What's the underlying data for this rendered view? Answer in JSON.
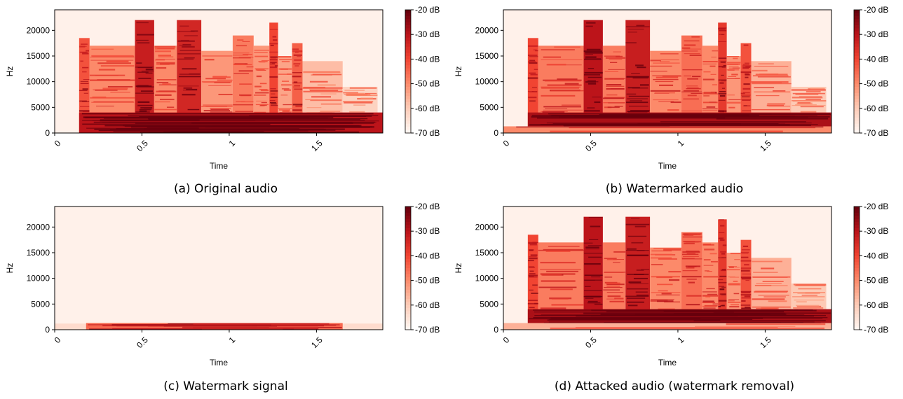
{
  "colors": {
    "spectrogram_colormap": [
      "#fff5f0",
      "#fdcab5",
      "#fc8a6a",
      "#f14432",
      "#bc141a",
      "#67000d"
    ]
  },
  "panels": [
    {
      "caption": "(a) Original audio"
    },
    {
      "caption": "(b) Watermarked audio"
    },
    {
      "caption": "(c) Watermark signal"
    },
    {
      "caption": "(d) Attacked audio (watermark removal)"
    }
  ],
  "chart_data": [
    {
      "type": "heatmap",
      "xlabel": "Time",
      "ylabel": "Hz",
      "xlim": [
        0,
        1.88
      ],
      "ylim": [
        0,
        24000
      ],
      "xticks": [
        "0",
        "0.5",
        "1",
        "1.5"
      ],
      "x_tick_values": [
        0,
        0.5,
        1,
        1.5
      ],
      "yticks": [
        "0",
        "5000",
        "10000",
        "15000",
        "20000"
      ],
      "y_tick_values": [
        0,
        5000,
        10000,
        15000,
        20000
      ],
      "colorbar": {
        "range_db": [
          -70,
          -20
        ],
        "ticks": [
          "-20 dB",
          "-30 dB",
          "-40 dB",
          "-50 dB",
          "-60 dB",
          "-70 dB"
        ]
      },
      "energy_bands": [
        {
          "t": [
            0.14,
            0.2
          ],
          "f_max": 18500,
          "db": -42
        },
        {
          "t": [
            0.2,
            0.46
          ],
          "f_max": 17000,
          "db": -50
        },
        {
          "t": [
            0.46,
            0.57
          ],
          "f_max": 22000,
          "db": -32
        },
        {
          "t": [
            0.57,
            0.7
          ],
          "f_max": 17000,
          "db": -50
        },
        {
          "t": [
            0.7,
            0.84
          ],
          "f_max": 22000,
          "db": -34
        },
        {
          "t": [
            0.84,
            1.02
          ],
          "f_max": 16000,
          "db": -52
        },
        {
          "t": [
            1.02,
            1.14
          ],
          "f_max": 19000,
          "db": -48
        },
        {
          "t": [
            1.14,
            1.23
          ],
          "f_max": 17000,
          "db": -52
        },
        {
          "t": [
            1.23,
            1.28
          ],
          "f_max": 21500,
          "db": -40
        },
        {
          "t": [
            1.28,
            1.36
          ],
          "f_max": 15000,
          "db": -54
        },
        {
          "t": [
            1.36,
            1.42
          ],
          "f_max": 17500,
          "db": -44
        },
        {
          "t": [
            1.42,
            1.65
          ],
          "f_max": 14000,
          "db": -58
        },
        {
          "t": [
            1.65,
            1.85
          ],
          "f_max": 9000,
          "db": -62
        }
      ],
      "low_band": {
        "t": [
          0.14,
          1.88
        ],
        "f_max": 4000,
        "db": -30
      }
    },
    {
      "type": "heatmap",
      "xlabel": "Time",
      "ylabel": "Hz",
      "xlim": [
        0,
        1.88
      ],
      "ylim": [
        0,
        24000
      ],
      "xticks": [
        "0",
        "0.5",
        "1",
        "1.5"
      ],
      "x_tick_values": [
        0,
        0.5,
        1,
        1.5
      ],
      "yticks": [
        "0",
        "5000",
        "10000",
        "15000",
        "20000"
      ],
      "y_tick_values": [
        0,
        5000,
        10000,
        15000,
        20000
      ],
      "colorbar": {
        "range_db": [
          -70,
          -20
        ],
        "ticks": [
          "-20 dB",
          "-30 dB",
          "-40 dB",
          "-50 dB",
          "-60 dB",
          "-70 dB"
        ]
      },
      "energy_bands": [
        {
          "t": [
            0.14,
            0.2
          ],
          "f_max": 18500,
          "db": -40
        },
        {
          "t": [
            0.2,
            0.46
          ],
          "f_max": 17000,
          "db": -48
        },
        {
          "t": [
            0.46,
            0.57
          ],
          "f_max": 22000,
          "db": -30
        },
        {
          "t": [
            0.57,
            0.7
          ],
          "f_max": 17000,
          "db": -48
        },
        {
          "t": [
            0.7,
            0.84
          ],
          "f_max": 22000,
          "db": -32
        },
        {
          "t": [
            0.84,
            1.02
          ],
          "f_max": 16000,
          "db": -50
        },
        {
          "t": [
            1.02,
            1.14
          ],
          "f_max": 19000,
          "db": -46
        },
        {
          "t": [
            1.14,
            1.23
          ],
          "f_max": 17000,
          "db": -50
        },
        {
          "t": [
            1.23,
            1.28
          ],
          "f_max": 21500,
          "db": -38
        },
        {
          "t": [
            1.28,
            1.36
          ],
          "f_max": 15000,
          "db": -52
        },
        {
          "t": [
            1.36,
            1.42
          ],
          "f_max": 17500,
          "db": -42
        },
        {
          "t": [
            1.42,
            1.65
          ],
          "f_max": 14000,
          "db": -56
        },
        {
          "t": [
            1.65,
            1.85
          ],
          "f_max": 9000,
          "db": -60
        }
      ],
      "low_band": {
        "t": [
          0.14,
          1.88
        ],
        "f_max": 4000,
        "db": -28
      },
      "watermark_band": {
        "t": [
          0,
          1.88
        ],
        "f_max": 1300,
        "db": -50
      }
    },
    {
      "type": "heatmap",
      "xlabel": "Time",
      "ylabel": "Hz",
      "xlim": [
        0,
        1.88
      ],
      "ylim": [
        0,
        24000
      ],
      "xticks": [
        "0",
        "0.5",
        "1",
        "1.5"
      ],
      "x_tick_values": [
        0,
        0.5,
        1,
        1.5
      ],
      "yticks": [
        "0",
        "5000",
        "10000",
        "15000",
        "20000"
      ],
      "y_tick_values": [
        0,
        5000,
        10000,
        15000,
        20000
      ],
      "colorbar": {
        "range_db": [
          -70,
          -20
        ],
        "ticks": [
          "-20 dB",
          "-30 dB",
          "-40 dB",
          "-50 dB",
          "-60 dB",
          "-70 dB"
        ]
      },
      "energy_bands": [],
      "watermark_band": {
        "t": [
          0.18,
          1.65
        ],
        "f_max": 1300,
        "db": -45
      },
      "watermark_floor": {
        "t": [
          0,
          1.88
        ],
        "f_max": 1200,
        "db": -64
      }
    },
    {
      "type": "heatmap",
      "xlabel": "Time",
      "ylabel": "Hz",
      "xlim": [
        0,
        1.88
      ],
      "ylim": [
        0,
        24000
      ],
      "xticks": [
        "0",
        "0.5",
        "1",
        "1.5"
      ],
      "x_tick_values": [
        0,
        0.5,
        1,
        1.5
      ],
      "yticks": [
        "0",
        "5000",
        "10000",
        "15000",
        "20000"
      ],
      "y_tick_values": [
        0,
        5000,
        10000,
        15000,
        20000
      ],
      "colorbar": {
        "range_db": [
          -70,
          -20
        ],
        "ticks": [
          "-20 dB",
          "-30 dB",
          "-40 dB",
          "-50 dB",
          "-60 dB",
          "-70 dB"
        ]
      },
      "energy_bands": [
        {
          "t": [
            0.14,
            0.2
          ],
          "f_max": 18500,
          "db": -40
        },
        {
          "t": [
            0.2,
            0.46
          ],
          "f_max": 17000,
          "db": -48
        },
        {
          "t": [
            0.46,
            0.57
          ],
          "f_max": 22000,
          "db": -30
        },
        {
          "t": [
            0.57,
            0.7
          ],
          "f_max": 17000,
          "db": -48
        },
        {
          "t": [
            0.7,
            0.84
          ],
          "f_max": 22000,
          "db": -32
        },
        {
          "t": [
            0.84,
            1.02
          ],
          "f_max": 16000,
          "db": -50
        },
        {
          "t": [
            1.02,
            1.14
          ],
          "f_max": 19000,
          "db": -46
        },
        {
          "t": [
            1.14,
            1.23
          ],
          "f_max": 17000,
          "db": -50
        },
        {
          "t": [
            1.23,
            1.28
          ],
          "f_max": 21500,
          "db": -38
        },
        {
          "t": [
            1.28,
            1.36
          ],
          "f_max": 15000,
          "db": -52
        },
        {
          "t": [
            1.36,
            1.42
          ],
          "f_max": 17500,
          "db": -42
        },
        {
          "t": [
            1.42,
            1.65
          ],
          "f_max": 14000,
          "db": -56
        },
        {
          "t": [
            1.65,
            1.85
          ],
          "f_max": 9000,
          "db": -60
        }
      ],
      "low_band": {
        "t": [
          0.14,
          1.88
        ],
        "f_max": 4000,
        "db": -28
      },
      "watermark_band": {
        "t": [
          0,
          1.88
        ],
        "f_max": 1300,
        "db": -56
      }
    }
  ]
}
